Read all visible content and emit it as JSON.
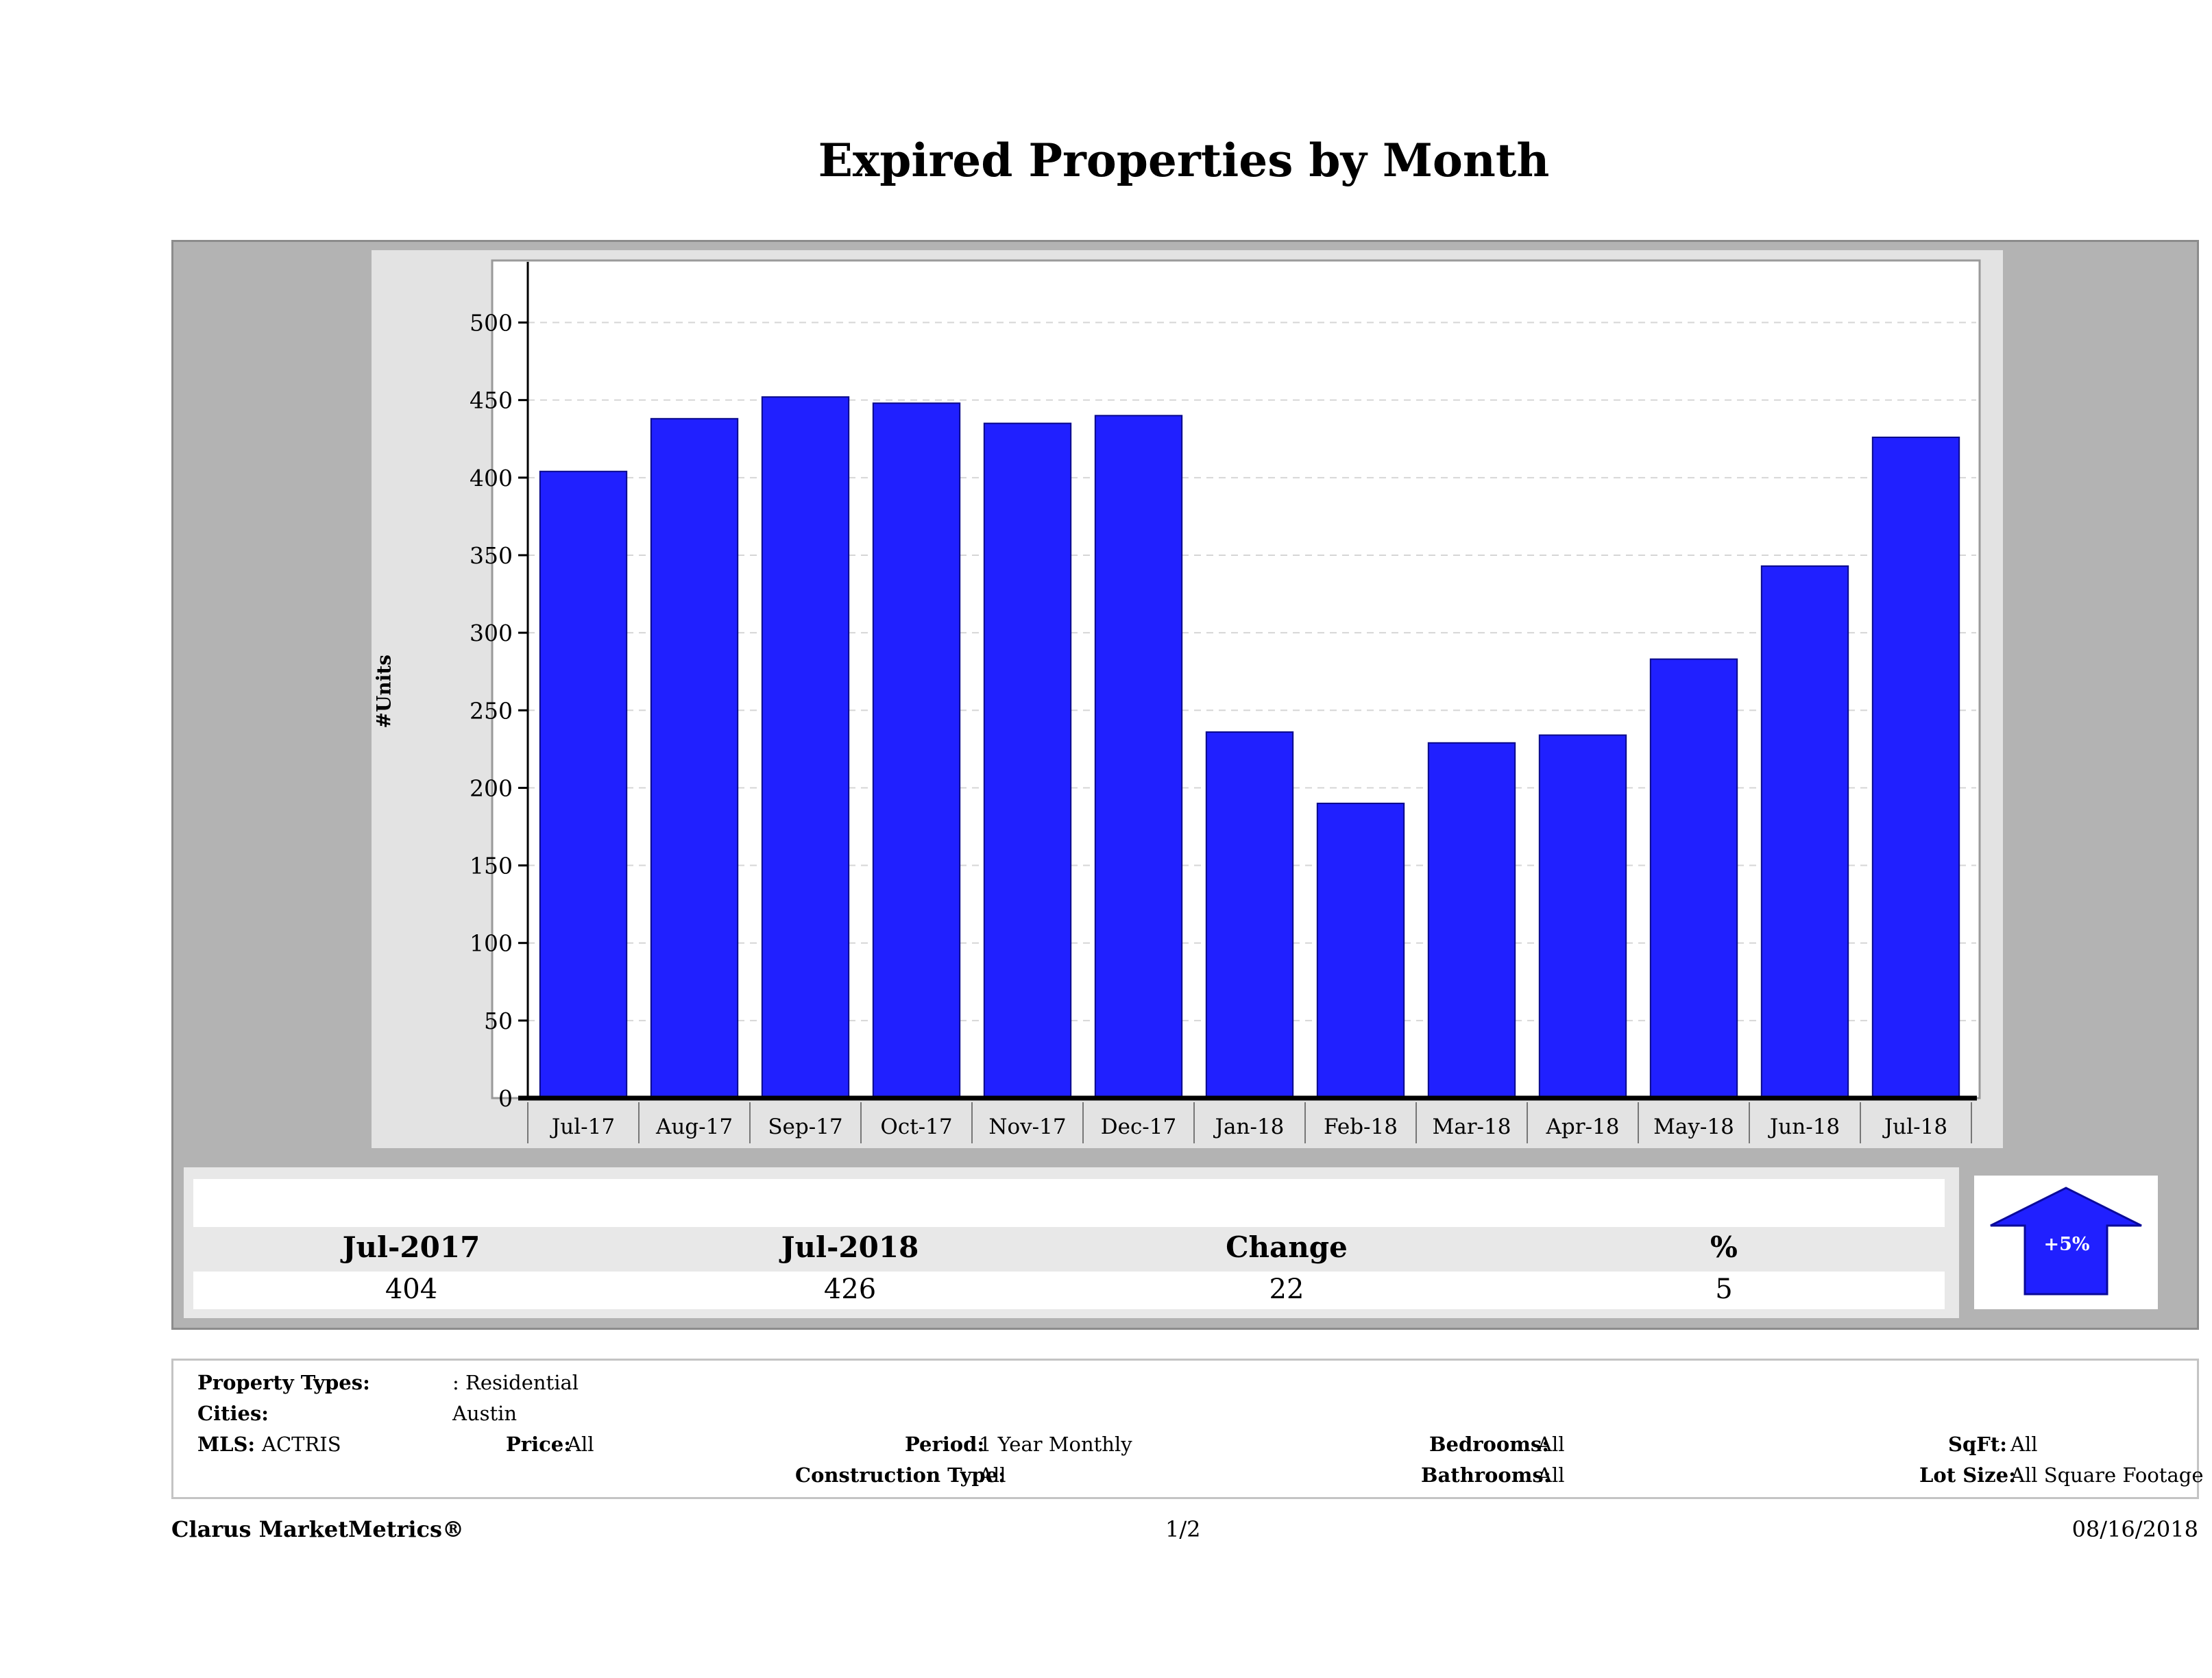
{
  "title": "Expired Properties by Month",
  "colors": {
    "bar": "#2020ff",
    "frame": "#b3b3b3",
    "panel": "#e3e3e3"
  },
  "chart_data": {
    "type": "bar",
    "title": "Expired Properties by Month",
    "xlabel": "",
    "ylabel": "#Units",
    "ylim": [
      0,
      540
    ],
    "yticks": [
      0,
      50,
      100,
      150,
      200,
      250,
      300,
      350,
      400,
      450,
      500
    ],
    "grid": true,
    "categories": [
      "Jul-17",
      "Aug-17",
      "Sep-17",
      "Oct-17",
      "Nov-17",
      "Dec-17",
      "Jan-18",
      "Feb-18",
      "Mar-18",
      "Apr-18",
      "May-18",
      "Jun-18",
      "Jul-18"
    ],
    "values": [
      404,
      438,
      452,
      448,
      435,
      440,
      236,
      190,
      229,
      234,
      283,
      343,
      426
    ]
  },
  "summary": {
    "headers": [
      "Jul-2017",
      "Jul-2018",
      "Change",
      "%"
    ],
    "values": [
      "404",
      "426",
      "22",
      "5"
    ],
    "badge": "+5%",
    "badge_icon": "up-arrow-icon"
  },
  "criteria": {
    "property_types_label": "Property Types:",
    "property_types_value": ": Residential",
    "cities_label": "Cities:",
    "cities_value": "Austin",
    "mls_label": "MLS:",
    "mls_value": "ACTRIS",
    "price_label": "Price:",
    "price_value": "All",
    "period_label": "Period:",
    "period_value": "1 Year Monthly",
    "construction_label": "Construction Type:",
    "construction_value": "All",
    "bedrooms_label": "Bedrooms:",
    "bedrooms_value": "All",
    "bathrooms_label": "Bathrooms:",
    "bathrooms_value": "All",
    "sqft_label": "SqFt:",
    "sqft_value": "All",
    "lotsize_label": "Lot Size:",
    "lotsize_value": "All Square Footage"
  },
  "footer": {
    "brand": "Clarus MarketMetrics®",
    "page": "1/2",
    "date": "08/16/2018"
  }
}
